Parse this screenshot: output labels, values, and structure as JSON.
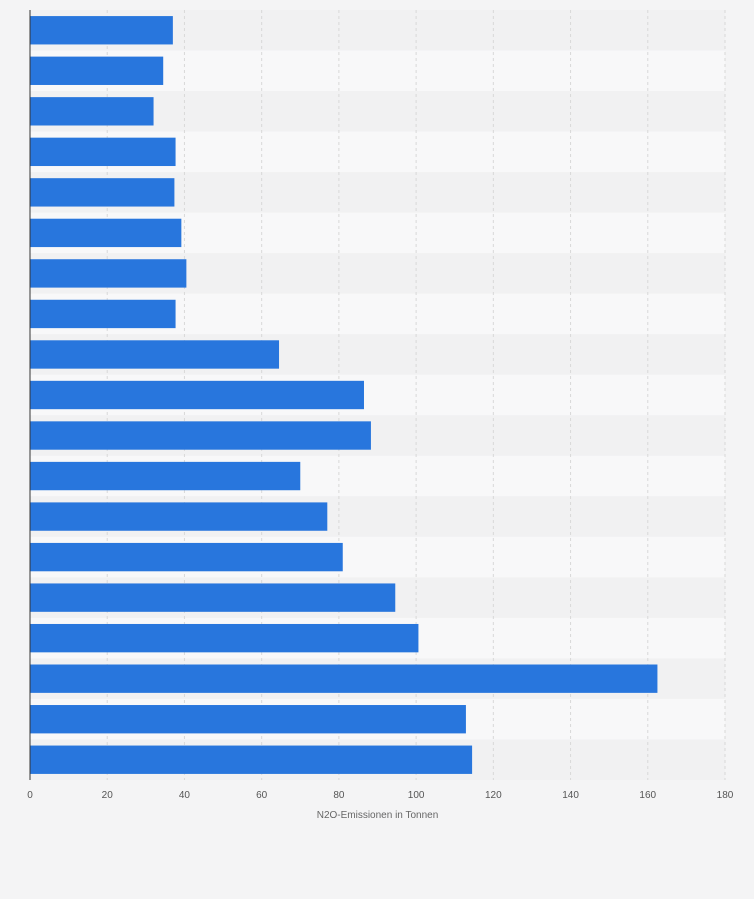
{
  "chart_data": {
    "type": "bar",
    "orientation": "horizontal",
    "categories": [
      "",
      "",
      "",
      "",
      "",
      "",
      "",
      "",
      "",
      "",
      "",
      "",
      "",
      "",
      "",
      "",
      "",
      "",
      ""
    ],
    "values": [
      37,
      34.5,
      32,
      37.7,
      37.4,
      39.2,
      40.5,
      37.7,
      64.5,
      86.5,
      88.3,
      70,
      77,
      81,
      94.6,
      100.6,
      162.5,
      112.9,
      114.5
    ],
    "xlabel": "N2O-Emissionen in Tonnen",
    "ylabel": "",
    "xlim": [
      0,
      180
    ],
    "xticks": [
      0,
      20,
      40,
      60,
      80,
      100,
      120,
      140,
      160,
      180
    ],
    "grid": true,
    "colors": {
      "bar": "#2876dd",
      "band_light": "#f8f8f9",
      "band_dark": "#f1f1f2",
      "grid": "#d8d8d8",
      "axis": "#333333"
    }
  }
}
